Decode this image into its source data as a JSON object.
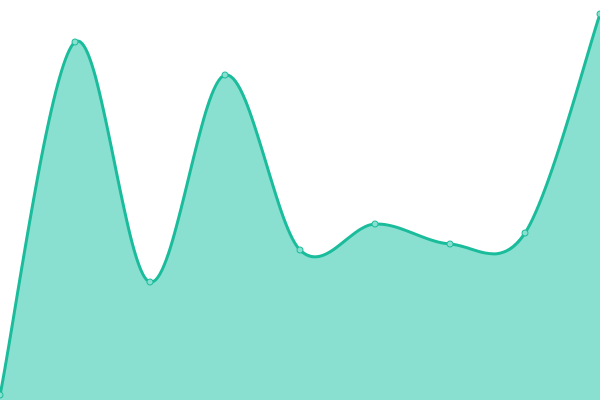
{
  "chart_data": {
    "type": "area",
    "title": "",
    "xlabel": "",
    "ylabel": "",
    "x": [
      0,
      1,
      2,
      3,
      4,
      5,
      6,
      7,
      8
    ],
    "series": [
      {
        "values": [
          5,
          358,
          118,
          325,
          150,
          176,
          156,
          167,
          386
        ]
      }
    ],
    "ylim": [
      0,
      400
    ],
    "grid": false,
    "legend": "none",
    "curve": "smooth",
    "colors": {
      "line": "#1abc9c",
      "fill": "#8ae0d0",
      "point_fill": "#8ae0d0",
      "point_stroke": "#1abc9c"
    }
  }
}
